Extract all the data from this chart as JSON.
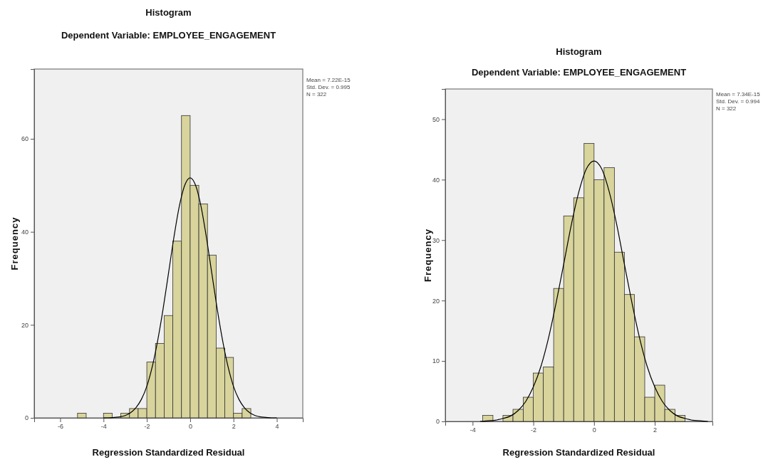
{
  "chart_data": [
    {
      "type": "histogram",
      "title": "Histogram",
      "subtitle": "Dependent Variable: EMPLOYEE_ENGAGEMENT",
      "xlabel": "Regression Standardized Residual",
      "ylabel": "Frequency",
      "annotations": [
        "Mean = 7.22E-15",
        "Std. Dev. = 0.995",
        "N = 322"
      ],
      "bins": [
        -5.2,
        -4.8,
        -4.4,
        -4.0,
        -3.6,
        -3.2,
        -2.8,
        -2.4,
        -2.0,
        -1.6,
        -1.2,
        -0.8,
        -0.4,
        0,
        0.4,
        0.8,
        1.2,
        1.6,
        2.0,
        2.4,
        2.8
      ],
      "series": [
        {
          "type": "histogram",
          "color": "#d8d49c",
          "values": [
            1,
            0,
            0,
            1,
            0,
            1,
            2,
            2,
            12,
            16,
            22,
            38,
            65,
            50,
            46,
            35,
            15,
            13,
            1,
            2
          ]
        },
        {
          "type": "line",
          "color": "#000000",
          "x": [
            -4,
            -3.75,
            -3.5,
            -3.25,
            -3,
            -2.75,
            -2.5,
            -2.25,
            -2,
            -1.75,
            -1.5,
            -1.25,
            -1,
            -0.75,
            -0.5,
            -0.25,
            0,
            0.25,
            0.5,
            0.75,
            1,
            1.25,
            1.5,
            1.75,
            2,
            2.25,
            2.5,
            2.75,
            3,
            3.25,
            3.5,
            3.75,
            4
          ],
          "values": [
            0,
            0,
            0.1,
            0.2,
            0.5,
            1.1,
            2.2,
            4.0,
            6.8,
            11.0,
            16.6,
            23.4,
            31.1,
            38.8,
            45.5,
            50.0,
            51.6,
            50.0,
            45.5,
            38.8,
            31.1,
            23.4,
            16.6,
            11.0,
            6.8,
            4.0,
            2.2,
            1.1,
            0.5,
            0.2,
            0.1,
            0,
            0
          ]
        }
      ],
      "xlim": [
        -7.2,
        5.2
      ],
      "xticks": [
        -6,
        -4,
        -2,
        0,
        2,
        4
      ],
      "ylim": [
        0,
        75
      ],
      "yticks": [
        0,
        20,
        40,
        60
      ]
    },
    {
      "type": "histogram",
      "title": "Histogram",
      "subtitle": "Dependent Variable: EMPLOYEE_ENGAGEMENT",
      "xlabel": "Regression Standardized Residual",
      "ylabel": "Frequency",
      "annotations": [
        "Mean = 7.34E-15",
        "Std. Dev. = 0.994",
        "N = 322"
      ],
      "bins": [
        -3.67,
        -3.33,
        -3,
        -2.67,
        -2.33,
        -2,
        -1.67,
        -1.33,
        -1,
        -0.67,
        -0.33,
        0,
        0.33,
        0.67,
        1,
        1.33,
        1.67,
        2,
        2.33,
        2.67,
        3
      ],
      "series": [
        {
          "type": "histogram",
          "color": "#d8d49c",
          "values": [
            1,
            0,
            1,
            2,
            4,
            8,
            9,
            22,
            34,
            37,
            46,
            40,
            42,
            28,
            21,
            14,
            4,
            6,
            2,
            1
          ]
        },
        {
          "type": "line",
          "color": "#000000",
          "x": [
            -3.75,
            -3.5,
            -3.25,
            -3,
            -2.75,
            -2.5,
            -2.25,
            -2,
            -1.75,
            -1.5,
            -1.25,
            -1,
            -0.75,
            -0.5,
            -0.25,
            0,
            0.25,
            0.5,
            0.75,
            1,
            1.25,
            1.5,
            1.75,
            2,
            2.25,
            2.5,
            2.75,
            3,
            3.25,
            3.5,
            3.75
          ],
          "values": [
            0,
            0.1,
            0.2,
            0.5,
            0.9,
            1.8,
            3.3,
            5.7,
            9.1,
            13.8,
            19.6,
            26.0,
            32.5,
            38.0,
            41.8,
            43.1,
            41.8,
            38.0,
            32.5,
            26.0,
            19.6,
            13.8,
            9.1,
            5.7,
            3.3,
            1.8,
            0.9,
            0.5,
            0.2,
            0.1,
            0
          ]
        }
      ],
      "xlim": [
        -4.9,
        3.9
      ],
      "xticks": [
        -4,
        -2,
        0,
        2
      ],
      "ylim": [
        0,
        55
      ],
      "yticks": [
        0,
        10,
        20,
        30,
        40,
        50
      ]
    }
  ]
}
